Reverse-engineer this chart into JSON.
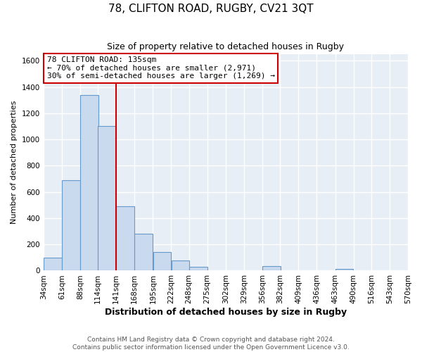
{
  "title": "78, CLIFTON ROAD, RUGBY, CV21 3QT",
  "subtitle": "Size of property relative to detached houses in Rugby",
  "xlabel": "Distribution of detached houses by size in Rugby",
  "ylabel": "Number of detached properties",
  "bar_left_edges": [
    34,
    61,
    88,
    114,
    141,
    168,
    195,
    222,
    248,
    275,
    302,
    329,
    356,
    382,
    409,
    436,
    463,
    490,
    516,
    543
  ],
  "bar_heights": [
    100,
    690,
    1340,
    1100,
    490,
    280,
    140,
    75,
    30,
    0,
    0,
    0,
    35,
    0,
    0,
    0,
    15,
    0,
    0,
    0
  ],
  "bin_width": 27,
  "bar_color": "#c9d9ee",
  "bar_edge_color": "#6699cc",
  "property_line_x": 141,
  "ylim": [
    0,
    1650
  ],
  "yticks": [
    0,
    200,
    400,
    600,
    800,
    1000,
    1200,
    1400,
    1600
  ],
  "xtick_labels": [
    "34sqm",
    "61sqm",
    "88sqm",
    "114sqm",
    "141sqm",
    "168sqm",
    "195sqm",
    "222sqm",
    "248sqm",
    "275sqm",
    "302sqm",
    "329sqm",
    "356sqm",
    "382sqm",
    "409sqm",
    "436sqm",
    "463sqm",
    "490sqm",
    "516sqm",
    "543sqm",
    "570sqm"
  ],
  "annotation_title": "78 CLIFTON ROAD: 135sqm",
  "annotation_line1": "← 70% of detached houses are smaller (2,971)",
  "annotation_line2": "30% of semi-detached houses are larger (1,269) →",
  "annotation_box_facecolor": "#ffffff",
  "annotation_box_edgecolor": "#cc0000",
  "footer_line1": "Contains HM Land Registry data © Crown copyright and database right 2024.",
  "footer_line2": "Contains public sector information licensed under the Open Government Licence v3.0.",
  "fig_background": "#ffffff",
  "axes_background": "#e8eef5",
  "grid_color": "#ffffff",
  "line_color": "#cc0000",
  "title_fontsize": 11,
  "subtitle_fontsize": 9,
  "ylabel_fontsize": 8,
  "xlabel_fontsize": 9
}
